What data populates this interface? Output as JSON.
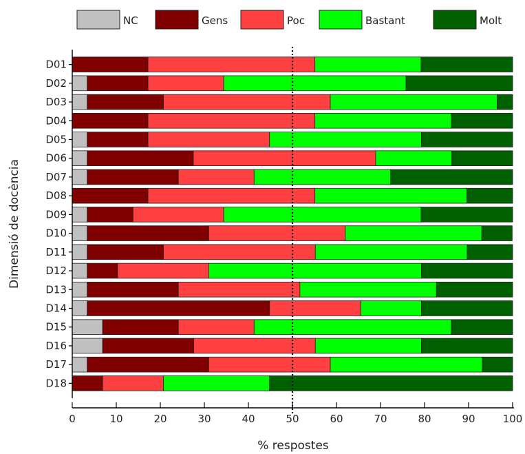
{
  "chart_data": {
    "type": "bar",
    "orientation": "horizontal",
    "stacked": true,
    "title": "",
    "xlabel": "% respostes",
    "ylabel": "Dimensió de docència",
    "xlim": [
      0,
      100
    ],
    "xticks": [
      0,
      10,
      20,
      30,
      40,
      50,
      60,
      70,
      80,
      90,
      100
    ],
    "reference_line": {
      "x": 50,
      "style": "dotted"
    },
    "legend_position": "top",
    "categories": [
      "D01",
      "D02",
      "D03",
      "D04",
      "D05",
      "D06",
      "D07",
      "D08",
      "D09",
      "D10",
      "D11",
      "D12",
      "D13",
      "D14",
      "D15",
      "D16",
      "D17",
      "D18"
    ],
    "series": [
      {
        "name": "NC",
        "color": "#c0c0c0",
        "values": [
          0,
          3.4,
          3.4,
          0,
          3.4,
          3.4,
          3.4,
          0,
          3.4,
          3.4,
          3.4,
          3.4,
          3.4,
          3.4,
          6.9,
          6.9,
          3.4,
          0
        ]
      },
      {
        "name": "Gens",
        "color": "#800000",
        "values": [
          17.2,
          13.8,
          17.3,
          17.2,
          13.8,
          24.1,
          20.7,
          17.2,
          10.4,
          27.6,
          17.3,
          6.9,
          20.7,
          41.4,
          17.2,
          20.7,
          27.6,
          6.9
        ]
      },
      {
        "name": "Poc",
        "color": "#ff4040",
        "values": [
          37.9,
          17.2,
          37.9,
          37.9,
          27.6,
          41.4,
          17.2,
          37.9,
          20.6,
          31.0,
          34.5,
          20.7,
          27.6,
          20.7,
          17.2,
          27.6,
          27.6,
          13.8
        ]
      },
      {
        "name": "Bastant",
        "color": "#00ff00",
        "values": [
          24.1,
          41.4,
          37.9,
          31.0,
          34.5,
          17.3,
          31.0,
          34.5,
          44.8,
          31.0,
          34.5,
          48.3,
          31.0,
          13.8,
          44.8,
          24.1,
          34.5,
          24.1
        ]
      },
      {
        "name": "Molt",
        "color": "#006000",
        "values": [
          20.8,
          24.2,
          3.5,
          13.9,
          20.7,
          13.8,
          27.7,
          10.4,
          20.8,
          6.9,
          10.3,
          20.7,
          17.3,
          20.7,
          13.9,
          20.7,
          6.9,
          55.2
        ]
      }
    ]
  }
}
